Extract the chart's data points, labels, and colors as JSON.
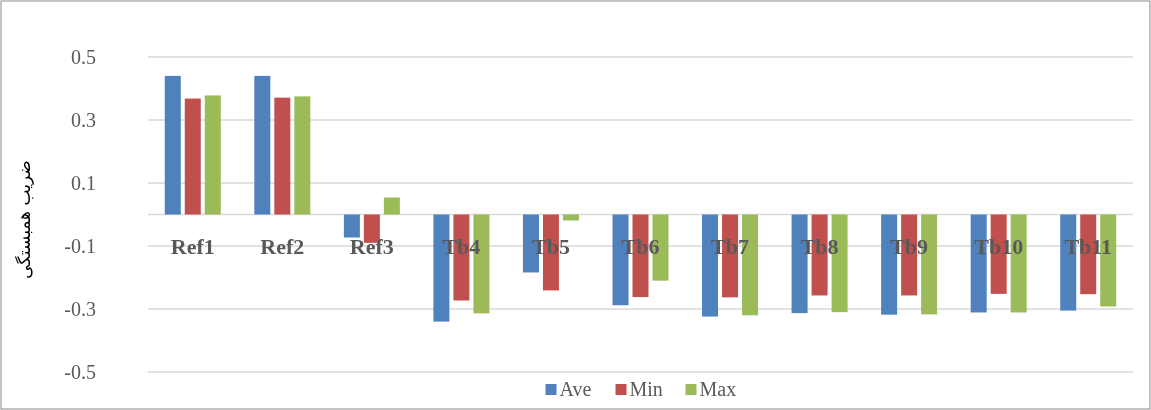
{
  "chart_data": {
    "type": "bar",
    "ylabel": "ضریب همبستگی",
    "categories": [
      "Ref1",
      "Ref2",
      "Ref3",
      "Tb4",
      "Tb5",
      "Tb6",
      "Tb7",
      "Tb8",
      "Tb9",
      "Tb10",
      "Tb11"
    ],
    "series": [
      {
        "name": "Ave",
        "color": "#4f81bd",
        "values": [
          0.44,
          0.44,
          -0.073,
          -0.34,
          -0.184,
          -0.288,
          -0.324,
          -0.313,
          -0.318,
          -0.311,
          -0.305
        ]
      },
      {
        "name": "Min",
        "color": "#c0504d",
        "values": [
          0.368,
          0.371,
          -0.09,
          -0.273,
          -0.241,
          -0.262,
          -0.263,
          -0.257,
          -0.257,
          -0.252,
          -0.253
        ]
      },
      {
        "name": "Max",
        "color": "#9bbb59",
        "values": [
          0.378,
          0.375,
          0.054,
          -0.314,
          -0.019,
          -0.21,
          -0.32,
          -0.31,
          -0.317,
          -0.311,
          -0.292
        ]
      }
    ],
    "ylim": [
      -0.5,
      0.5
    ],
    "yticks": [
      -0.5,
      -0.3,
      -0.1,
      0.1,
      0.3,
      0.5
    ],
    "grid": "y",
    "legend": "bottom"
  }
}
